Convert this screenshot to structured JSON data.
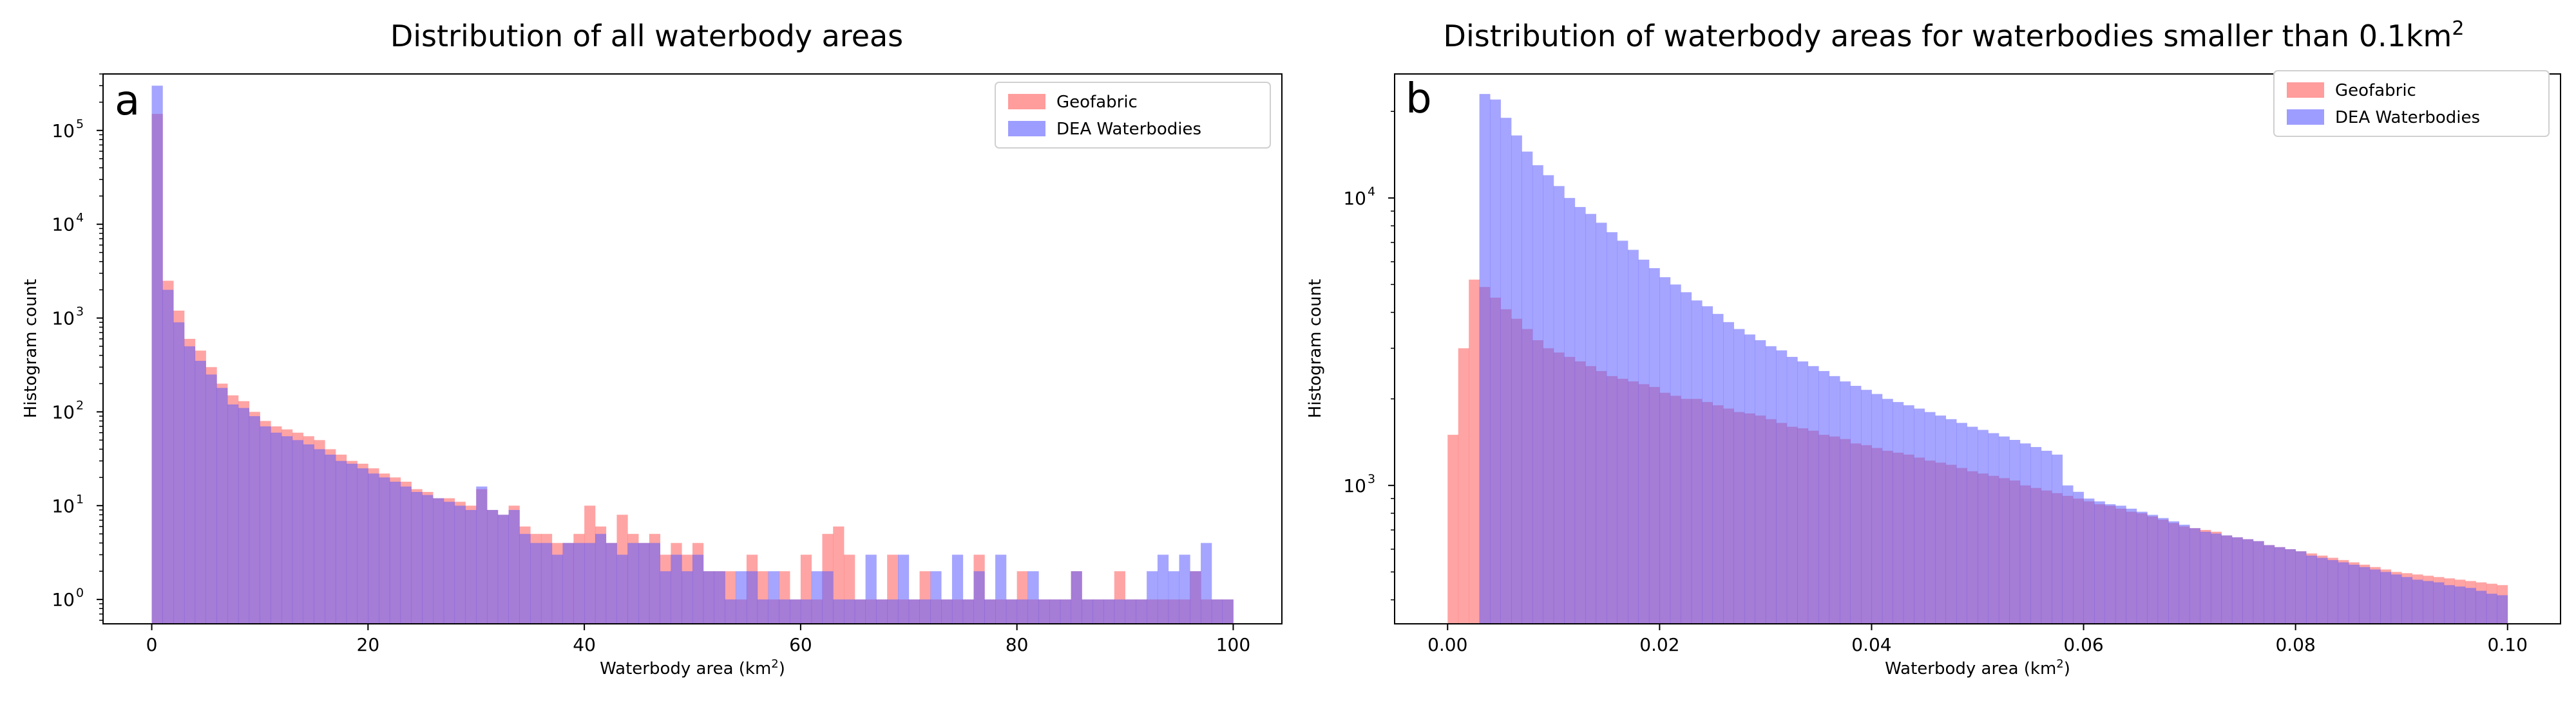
{
  "colors": {
    "geofabric": "#ff5a5a",
    "dea": "#5b5bff",
    "overlap": "#9b4fbf",
    "axis": "#000000",
    "background": "#ffffff"
  },
  "panels": [
    {
      "id": "a",
      "letter": "a"
    },
    {
      "id": "b",
      "letter": "b"
    }
  ],
  "chart_data": [
    {
      "type": "bar",
      "subtype": "histogram",
      "panel": "a",
      "title": "Distribution of all waterbody areas",
      "xlabel_main": "Waterbody area (km",
      "xlabel_sup": "2",
      "xlabel_tail": ")",
      "ylabel": "Histogram count",
      "yscale": "log",
      "xlim": [
        -4.5,
        104.5
      ],
      "ylim": [
        0.55,
        400000
      ],
      "bin_start": 0,
      "bin_width": 1,
      "xticks": [
        0,
        20,
        40,
        60,
        80,
        100
      ],
      "xtick_labels": [
        "0",
        "20",
        "40",
        "60",
        "80",
        "100"
      ],
      "yticks": [
        1,
        10,
        100,
        1000,
        10000,
        100000
      ],
      "ytick_base": [
        "10",
        "10",
        "10",
        "10",
        "10",
        "10"
      ],
      "ytick_exp": [
        "0",
        "1",
        "2",
        "3",
        "4",
        "5"
      ],
      "legend_position": "top-right",
      "series": [
        {
          "name": "Geofabric",
          "values": [
            150000,
            2500,
            1200,
            600,
            450,
            300,
            200,
            150,
            130,
            100,
            80,
            70,
            65,
            60,
            55,
            50,
            40,
            35,
            30,
            28,
            25,
            22,
            20,
            18,
            15,
            14,
            12,
            12,
            11,
            10,
            15,
            9,
            8,
            10,
            6,
            5,
            5,
            4,
            4,
            5,
            10,
            6,
            4,
            8,
            5,
            4,
            5,
            3,
            4,
            3,
            4,
            2,
            2,
            2,
            1,
            3,
            2,
            1,
            2,
            1,
            3,
            1,
            5,
            6,
            3,
            1,
            1,
            1,
            3,
            1,
            1,
            2,
            1,
            1,
            1,
            1,
            3,
            1,
            1,
            1,
            2,
            1,
            1,
            1,
            1,
            2,
            1,
            1,
            1,
            2,
            1,
            1,
            1,
            1,
            1,
            1,
            2,
            1,
            1,
            1
          ]
        },
        {
          "name": "DEA Waterbodies",
          "values": [
            300000,
            2000,
            900,
            500,
            350,
            250,
            180,
            120,
            110,
            90,
            70,
            60,
            55,
            50,
            45,
            40,
            35,
            30,
            28,
            25,
            22,
            20,
            18,
            16,
            14,
            13,
            12,
            11,
            10,
            9,
            16,
            9,
            8,
            9,
            5,
            4,
            4,
            3,
            4,
            4,
            4,
            5,
            4,
            3,
            4,
            4,
            4,
            2,
            3,
            2,
            3,
            2,
            2,
            1,
            2,
            2,
            1,
            2,
            1,
            1,
            1,
            2,
            2,
            1,
            1,
            1,
            3,
            1,
            1,
            3,
            1,
            1,
            2,
            1,
            3,
            1,
            2,
            1,
            3,
            1,
            1,
            2,
            1,
            1,
            1,
            2,
            1,
            1,
            1,
            1,
            1,
            1,
            2,
            3,
            2,
            3,
            2,
            4,
            1,
            1
          ]
        }
      ]
    },
    {
      "type": "bar",
      "subtype": "histogram",
      "panel": "b",
      "title": "Distribution of waterbody areas for waterbodies smaller than 0.1km",
      "title_sup": "2",
      "xlabel_main": "Waterbody area (km",
      "xlabel_sup": "2",
      "xlabel_tail": ")",
      "ylabel": "Histogram count",
      "yscale": "log",
      "xlim": [
        -0.005,
        0.105
      ],
      "ylim": [
        330,
        27000
      ],
      "bin_start": 0,
      "bin_width": 0.001,
      "xticks": [
        0,
        0.02,
        0.04,
        0.06,
        0.08,
        0.1
      ],
      "xtick_labels": [
        "0.00",
        "0.02",
        "0.04",
        "0.06",
        "0.08",
        "0.10"
      ],
      "yticks": [
        1000,
        10000
      ],
      "ytick_base": [
        "10",
        "10"
      ],
      "ytick_exp": [
        "3",
        "4"
      ],
      "legend_position": "top-right",
      "series": [
        {
          "name": "Geofabric",
          "values": [
            1500,
            3000,
            5200,
            4900,
            4500,
            4100,
            3800,
            3500,
            3200,
            3000,
            2900,
            2800,
            2700,
            2600,
            2500,
            2400,
            2350,
            2300,
            2250,
            2200,
            2100,
            2050,
            2000,
            2000,
            1950,
            1900,
            1850,
            1800,
            1780,
            1750,
            1700,
            1650,
            1600,
            1580,
            1550,
            1500,
            1480,
            1450,
            1400,
            1380,
            1350,
            1320,
            1300,
            1280,
            1250,
            1220,
            1200,
            1180,
            1150,
            1120,
            1100,
            1080,
            1060,
            1040,
            1000,
            980,
            960,
            940,
            920,
            900,
            880,
            860,
            850,
            830,
            810,
            800,
            780,
            760,
            740,
            720,
            710,
            700,
            690,
            670,
            660,
            650,
            640,
            620,
            610,
            600,
            590,
            580,
            570,
            560,
            550,
            540,
            530,
            520,
            510,
            500,
            495,
            490,
            485,
            480,
            475,
            470,
            465,
            460,
            455,
            450
          ]
        },
        {
          "name": "DEA Waterbodies",
          "values": [
            0,
            0,
            0,
            23000,
            22000,
            19000,
            16500,
            14500,
            13000,
            12000,
            11000,
            10000,
            9300,
            8800,
            8200,
            7600,
            7100,
            6600,
            6100,
            5700,
            5300,
            5000,
            4700,
            4400,
            4200,
            3950,
            3700,
            3500,
            3350,
            3200,
            3050,
            2950,
            2800,
            2700,
            2600,
            2500,
            2400,
            2300,
            2220,
            2150,
            2080,
            2000,
            1950,
            1900,
            1850,
            1800,
            1750,
            1700,
            1650,
            1600,
            1560,
            1520,
            1480,
            1440,
            1400,
            1360,
            1320,
            1280,
            1000,
            950,
            900,
            880,
            860,
            850,
            830,
            810,
            790,
            770,
            750,
            730,
            710,
            690,
            680,
            670,
            660,
            650,
            640,
            620,
            610,
            600,
            590,
            570,
            560,
            550,
            540,
            530,
            520,
            510,
            500,
            490,
            480,
            470,
            465,
            460,
            450,
            445,
            440,
            430,
            420,
            415
          ]
        }
      ]
    }
  ]
}
